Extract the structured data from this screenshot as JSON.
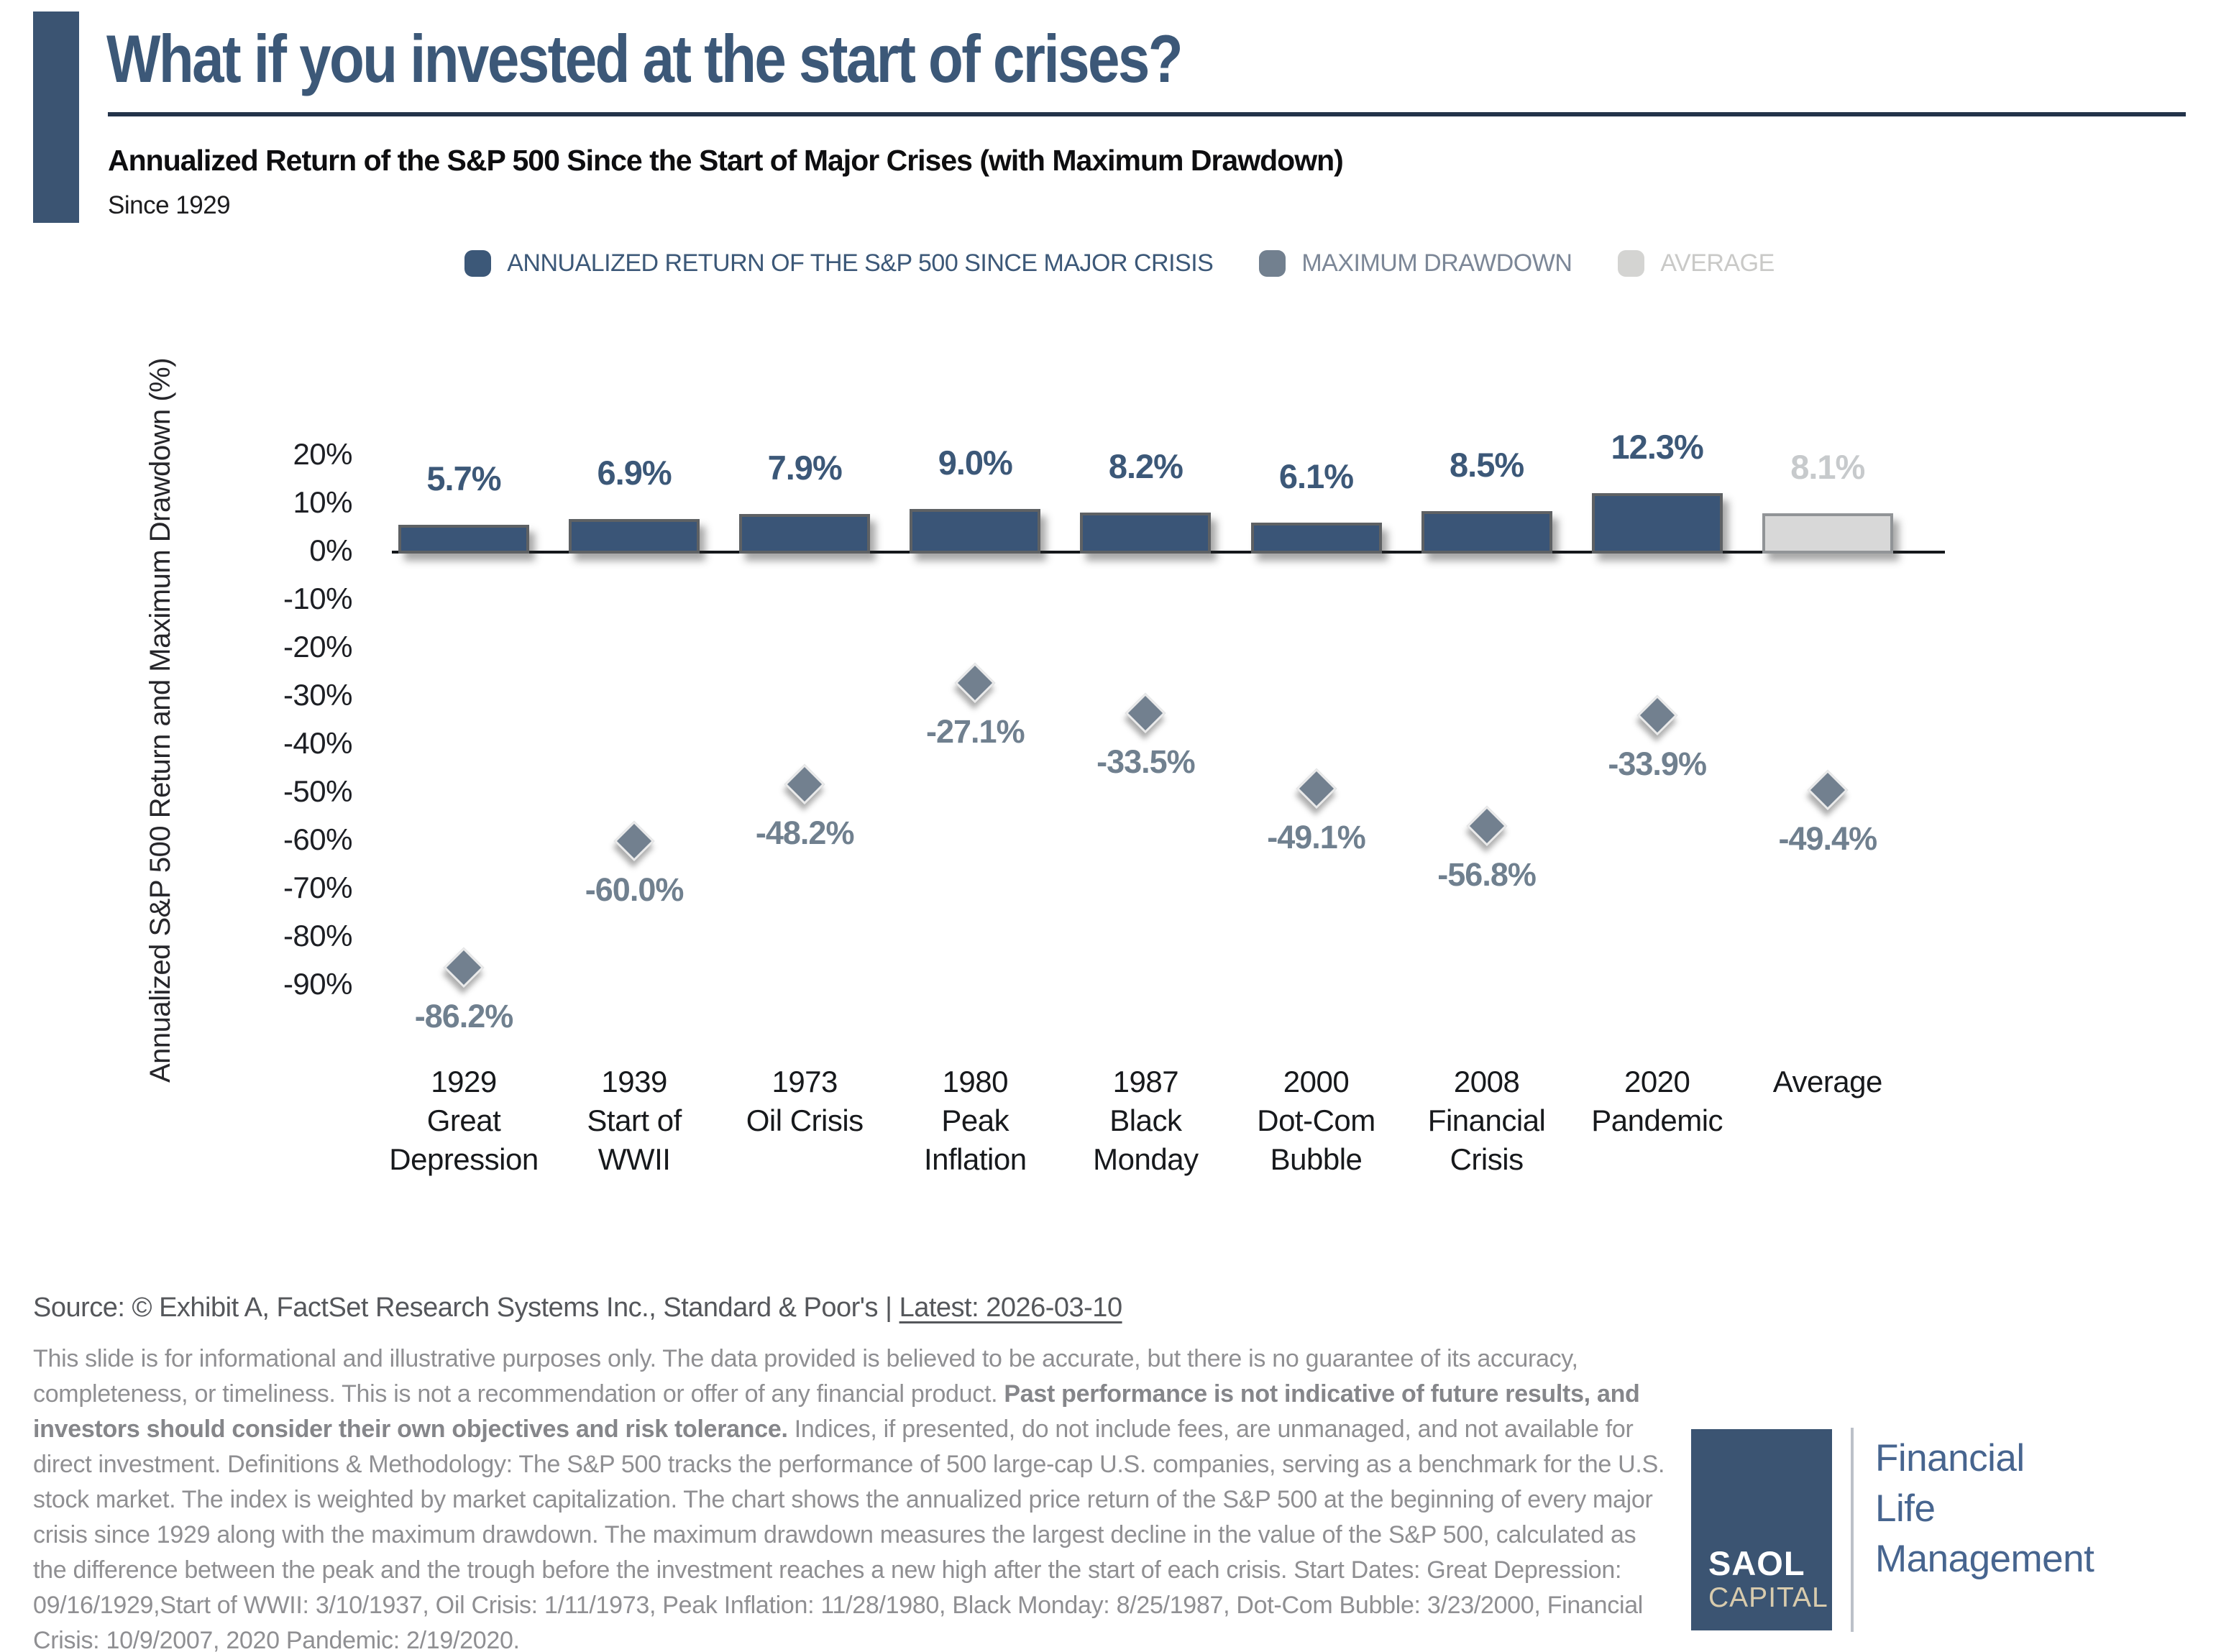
{
  "header": {
    "title": "What if you invested at the start of crises?",
    "subtitle": "Annualized Return of the S&P 500 Since the Start of Major Crises (with Maximum Drawdown)",
    "period": "Since 1929"
  },
  "legend": [
    {
      "label": "ANNUALIZED RETURN OF THE S&P 500 SINCE MAJOR CRISIS",
      "color": "#3C5878",
      "text_color": "#3C5878"
    },
    {
      "label": "MAXIMUM DRAWDOWN",
      "color": "#72808F",
      "text_color": "#7C8797"
    },
    {
      "label": "AVERAGE",
      "color": "#D4D4D2",
      "text_color": "#C9C9C7"
    }
  ],
  "chart_data": {
    "type": "bar",
    "title": "Annualized Return of the S&P 500 Since the Start of Major Crises (with Maximum Drawdown)",
    "ylabel": "Annualized S&P 500 Return and Maximum Drawdown (%)",
    "xlabel": "",
    "ylim": [
      -95,
      20
    ],
    "grid": false,
    "legend_position": "top",
    "yticks": [
      20,
      10,
      0,
      -10,
      -20,
      -30,
      -40,
      -50,
      -60,
      -70,
      -80,
      -90
    ],
    "categories": [
      [
        "1929",
        "Great",
        "Depression"
      ],
      [
        "1939",
        "Start of",
        "WWII"
      ],
      [
        "1973",
        "Oil Crisis"
      ],
      [
        "1980",
        "Peak",
        "Inflation"
      ],
      [
        "1987",
        "Black",
        "Monday"
      ],
      [
        "2000",
        "Dot-Com",
        "Bubble"
      ],
      [
        "2008",
        "Financial",
        "Crisis"
      ],
      [
        "2020",
        "Pandemic"
      ],
      [
        "Average"
      ]
    ],
    "series": [
      {
        "name": "ANNUALIZED RETURN OF THE S&P 500 SINCE MAJOR CRISIS",
        "type": "bar",
        "values": [
          5.7,
          6.9,
          7.9,
          9.0,
          8.2,
          6.1,
          8.5,
          12.3,
          8.1
        ]
      },
      {
        "name": "MAXIMUM DRAWDOWN",
        "type": "scatter-diamond",
        "values": [
          -86.2,
          -60.0,
          -48.2,
          -27.1,
          -33.5,
          -49.1,
          -56.8,
          -33.9,
          -49.4
        ]
      }
    ],
    "average_index": 8,
    "colors": {
      "bar": "#3A5577",
      "average_bar": "#D8D8D8",
      "drawdown_marker": "#72808F",
      "bar_label": "#3C5878",
      "average_bar_label": "#C7CACC",
      "drawdown_label": "#70808F"
    }
  },
  "footer": {
    "source_prefix": "Source: © Exhibit A, FactSet Research Systems Inc., Standard & Poor's | ",
    "source_latest": "Latest: 2026-03-10",
    "disclaimer_segments": [
      {
        "bold": false,
        "text": "This slide is for informational and illustrative purposes only. The data provided is believed to be accurate, but there is no guarantee of its accuracy, completeness, or timeliness. This is not a recommendation or offer of any financial product. "
      },
      {
        "bold": true,
        "text": "Past performance is not indicative of future results, and investors should consider their own objectives and risk tolerance."
      },
      {
        "bold": false,
        "text": " Indices, if presented, do not include fees, are unmanaged, and not available for direct investment. Definitions & Methodology: The S&P 500 tracks the performance of 500 large-cap U.S. companies, serving as a benchmark for the U.S. stock market. The index is weighted by market capitalization. The chart shows the annualized price return of the S&P 500 at the beginning of every major crisis since 1929 along with the maximum drawdown. The maximum drawdown measures the largest decline in the value of the S&P 500, calculated as the difference between the peak and the trough before the investment reaches a new high after the start of each crisis. Start Dates: Great Depression: 09/16/1929,Start of WWII: 3/10/1937, Oil Crisis: 1/11/1973, Peak Inflation: 11/28/1980, Black Monday: 8/25/1987, Dot-Com Bubble: 3/23/2000, Financial Crisis: 10/9/2007, 2020 Pandemic: 2/19/2020."
      }
    ]
  },
  "logo": {
    "name_top": "SAOL",
    "name_bottom": "CAPITAL",
    "tagline": "Financial\nLife\nManagement"
  }
}
